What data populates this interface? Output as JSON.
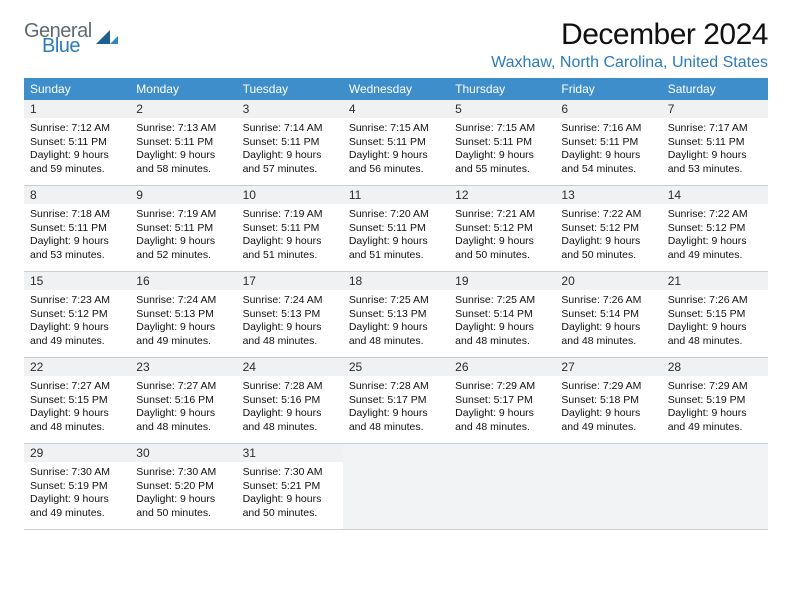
{
  "logo": {
    "general": "General",
    "blue": "Blue"
  },
  "title": "December 2024",
  "location": "Waxhaw, North Carolina, United States",
  "colors": {
    "header_bg": "#3d8ecb",
    "header_text": "#ffffff",
    "daynum_bg": "#f0f1f2",
    "location_color": "#2b7bbd",
    "border": "#c7cdd1",
    "empty_bg": "#f2f3f4"
  },
  "day_headers": [
    "Sunday",
    "Monday",
    "Tuesday",
    "Wednesday",
    "Thursday",
    "Friday",
    "Saturday"
  ],
  "layout": {
    "cols": 7,
    "rows": 5,
    "trailing_blanks": 4
  },
  "days": [
    {
      "n": "1",
      "sunrise": "7:12 AM",
      "sunset": "5:11 PM",
      "dl": "9 hours and 59 minutes."
    },
    {
      "n": "2",
      "sunrise": "7:13 AM",
      "sunset": "5:11 PM",
      "dl": "9 hours and 58 minutes."
    },
    {
      "n": "3",
      "sunrise": "7:14 AM",
      "sunset": "5:11 PM",
      "dl": "9 hours and 57 minutes."
    },
    {
      "n": "4",
      "sunrise": "7:15 AM",
      "sunset": "5:11 PM",
      "dl": "9 hours and 56 minutes."
    },
    {
      "n": "5",
      "sunrise": "7:15 AM",
      "sunset": "5:11 PM",
      "dl": "9 hours and 55 minutes."
    },
    {
      "n": "6",
      "sunrise": "7:16 AM",
      "sunset": "5:11 PM",
      "dl": "9 hours and 54 minutes."
    },
    {
      "n": "7",
      "sunrise": "7:17 AM",
      "sunset": "5:11 PM",
      "dl": "9 hours and 53 minutes."
    },
    {
      "n": "8",
      "sunrise": "7:18 AM",
      "sunset": "5:11 PM",
      "dl": "9 hours and 53 minutes."
    },
    {
      "n": "9",
      "sunrise": "7:19 AM",
      "sunset": "5:11 PM",
      "dl": "9 hours and 52 minutes."
    },
    {
      "n": "10",
      "sunrise": "7:19 AM",
      "sunset": "5:11 PM",
      "dl": "9 hours and 51 minutes."
    },
    {
      "n": "11",
      "sunrise": "7:20 AM",
      "sunset": "5:11 PM",
      "dl": "9 hours and 51 minutes."
    },
    {
      "n": "12",
      "sunrise": "7:21 AM",
      "sunset": "5:12 PM",
      "dl": "9 hours and 50 minutes."
    },
    {
      "n": "13",
      "sunrise": "7:22 AM",
      "sunset": "5:12 PM",
      "dl": "9 hours and 50 minutes."
    },
    {
      "n": "14",
      "sunrise": "7:22 AM",
      "sunset": "5:12 PM",
      "dl": "9 hours and 49 minutes."
    },
    {
      "n": "15",
      "sunrise": "7:23 AM",
      "sunset": "5:12 PM",
      "dl": "9 hours and 49 minutes."
    },
    {
      "n": "16",
      "sunrise": "7:24 AM",
      "sunset": "5:13 PM",
      "dl": "9 hours and 49 minutes."
    },
    {
      "n": "17",
      "sunrise": "7:24 AM",
      "sunset": "5:13 PM",
      "dl": "9 hours and 48 minutes."
    },
    {
      "n": "18",
      "sunrise": "7:25 AM",
      "sunset": "5:13 PM",
      "dl": "9 hours and 48 minutes."
    },
    {
      "n": "19",
      "sunrise": "7:25 AM",
      "sunset": "5:14 PM",
      "dl": "9 hours and 48 minutes."
    },
    {
      "n": "20",
      "sunrise": "7:26 AM",
      "sunset": "5:14 PM",
      "dl": "9 hours and 48 minutes."
    },
    {
      "n": "21",
      "sunrise": "7:26 AM",
      "sunset": "5:15 PM",
      "dl": "9 hours and 48 minutes."
    },
    {
      "n": "22",
      "sunrise": "7:27 AM",
      "sunset": "5:15 PM",
      "dl": "9 hours and 48 minutes."
    },
    {
      "n": "23",
      "sunrise": "7:27 AM",
      "sunset": "5:16 PM",
      "dl": "9 hours and 48 minutes."
    },
    {
      "n": "24",
      "sunrise": "7:28 AM",
      "sunset": "5:16 PM",
      "dl": "9 hours and 48 minutes."
    },
    {
      "n": "25",
      "sunrise": "7:28 AM",
      "sunset": "5:17 PM",
      "dl": "9 hours and 48 minutes."
    },
    {
      "n": "26",
      "sunrise": "7:29 AM",
      "sunset": "5:17 PM",
      "dl": "9 hours and 48 minutes."
    },
    {
      "n": "27",
      "sunrise": "7:29 AM",
      "sunset": "5:18 PM",
      "dl": "9 hours and 49 minutes."
    },
    {
      "n": "28",
      "sunrise": "7:29 AM",
      "sunset": "5:19 PM",
      "dl": "9 hours and 49 minutes."
    },
    {
      "n": "29",
      "sunrise": "7:30 AM",
      "sunset": "5:19 PM",
      "dl": "9 hours and 49 minutes."
    },
    {
      "n": "30",
      "sunrise": "7:30 AM",
      "sunset": "5:20 PM",
      "dl": "9 hours and 50 minutes."
    },
    {
      "n": "31",
      "sunrise": "7:30 AM",
      "sunset": "5:21 PM",
      "dl": "9 hours and 50 minutes."
    }
  ],
  "labels": {
    "sunrise": "Sunrise:",
    "sunset": "Sunset:",
    "daylight": "Daylight:"
  }
}
